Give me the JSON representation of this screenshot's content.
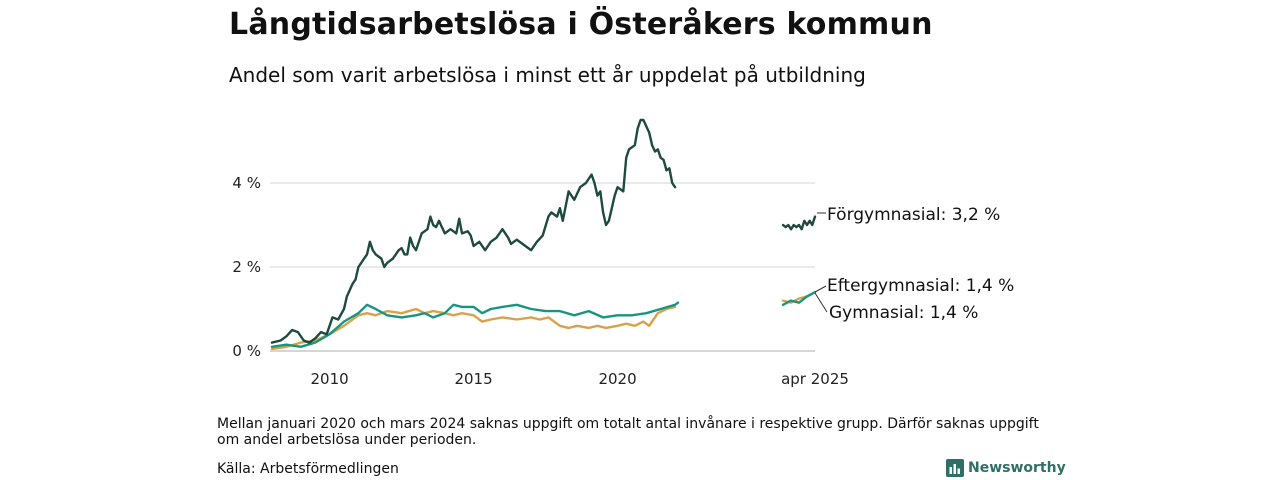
{
  "title": "Långtidsarbetslösa i Österåkers kommun",
  "subtitle": "Andel som varit arbetslösa i minst ett år uppdelat på utbildning",
  "note": "Mellan januari 2020 och mars 2024 saknas uppgift om totalt antal invånare i respektive grupp. Därför saknas uppgift om andel arbetslösa under perioden.",
  "source": "Källa: Arbetsförmedlingen",
  "brand": {
    "name": "Newsworthy",
    "icon": "bar-chart-icon",
    "color": "#2f6f66"
  },
  "chart_data": {
    "type": "line",
    "title": "Långtidsarbetslösa i Österåkers kommun",
    "subtitle": "Andel som varit arbetslösa i minst ett år uppdelat på utbildning",
    "xlabel": "",
    "ylabel": "",
    "ylim": [
      0,
      5.8
    ],
    "y_ticks": [
      {
        "value": 0,
        "label": "0 %"
      },
      {
        "value": 2,
        "label": "2 %"
      },
      {
        "value": 4,
        "label": "4 %"
      }
    ],
    "x_ticks": [
      {
        "value": 2010,
        "label": "2010"
      },
      {
        "value": 2015,
        "label": "2015"
      },
      {
        "value": 2020,
        "label": "2020"
      }
    ],
    "gap_label": "apr 2025",
    "grid": true,
    "legend": "direct labels at line ends (right)",
    "series": [
      {
        "name": "Förgymnasial",
        "end_label": "Förgymnasial: 3,2 %",
        "color": "#1f4a40",
        "segments": [
          [
            [
              2008.0,
              0.2
            ],
            [
              2008.3,
              0.25
            ],
            [
              2008.5,
              0.35
            ],
            [
              2008.7,
              0.5
            ],
            [
              2008.9,
              0.45
            ],
            [
              2009.1,
              0.25
            ],
            [
              2009.3,
              0.2
            ],
            [
              2009.5,
              0.3
            ],
            [
              2009.7,
              0.45
            ],
            [
              2009.9,
              0.4
            ],
            [
              2010.0,
              0.6
            ],
            [
              2010.1,
              0.8
            ],
            [
              2010.3,
              0.75
            ],
            [
              2010.5,
              1.0
            ],
            [
              2010.6,
              1.3
            ],
            [
              2010.8,
              1.6
            ],
            [
              2010.9,
              1.7
            ],
            [
              2011.0,
              2.0
            ],
            [
              2011.1,
              2.1
            ],
            [
              2011.2,
              2.2
            ],
            [
              2011.3,
              2.3
            ],
            [
              2011.4,
              2.6
            ],
            [
              2011.5,
              2.4
            ],
            [
              2011.6,
              2.3
            ],
            [
              2011.7,
              2.25
            ],
            [
              2011.8,
              2.2
            ],
            [
              2011.9,
              2.0
            ],
            [
              2012.0,
              2.1
            ],
            [
              2012.2,
              2.2
            ],
            [
              2012.4,
              2.4
            ],
            [
              2012.5,
              2.45
            ],
            [
              2012.6,
              2.3
            ],
            [
              2012.7,
              2.3
            ],
            [
              2012.8,
              2.7
            ],
            [
              2012.9,
              2.5
            ],
            [
              2013.0,
              2.4
            ],
            [
              2013.2,
              2.8
            ],
            [
              2013.4,
              2.9
            ],
            [
              2013.5,
              3.2
            ],
            [
              2013.6,
              3.0
            ],
            [
              2013.7,
              2.95
            ],
            [
              2013.8,
              3.1
            ],
            [
              2013.9,
              2.95
            ],
            [
              2014.0,
              2.8
            ],
            [
              2014.2,
              2.9
            ],
            [
              2014.4,
              2.8
            ],
            [
              2014.5,
              3.15
            ],
            [
              2014.6,
              2.8
            ],
            [
              2014.8,
              2.85
            ],
            [
              2014.9,
              2.75
            ],
            [
              2015.0,
              2.5
            ],
            [
              2015.2,
              2.6
            ],
            [
              2015.4,
              2.4
            ],
            [
              2015.6,
              2.6
            ],
            [
              2015.8,
              2.7
            ],
            [
              2016.0,
              2.9
            ],
            [
              2016.2,
              2.7
            ],
            [
              2016.3,
              2.55
            ],
            [
              2016.5,
              2.65
            ],
            [
              2016.7,
              2.55
            ],
            [
              2016.9,
              2.45
            ],
            [
              2017.0,
              2.4
            ],
            [
              2017.2,
              2.6
            ],
            [
              2017.4,
              2.75
            ],
            [
              2017.6,
              3.2
            ],
            [
              2017.7,
              3.3
            ],
            [
              2017.9,
              3.2
            ],
            [
              2018.0,
              3.4
            ],
            [
              2018.1,
              3.1
            ],
            [
              2018.3,
              3.8
            ],
            [
              2018.5,
              3.6
            ],
            [
              2018.7,
              3.9
            ],
            [
              2018.9,
              4.0
            ],
            [
              2019.1,
              4.2
            ],
            [
              2019.2,
              4.0
            ],
            [
              2019.3,
              3.7
            ],
            [
              2019.4,
              3.8
            ],
            [
              2019.5,
              3.3
            ],
            [
              2019.6,
              3.0
            ],
            [
              2019.7,
              3.1
            ],
            [
              2019.8,
              3.4
            ],
            [
              2019.9,
              3.7
            ],
            [
              2020.0,
              3.9
            ],
            [
              2020.2,
              3.8
            ],
            [
              2020.3,
              4.6
            ],
            [
              2020.4,
              4.8
            ],
            [
              2020.6,
              4.9
            ],
            [
              2020.7,
              5.3
            ],
            [
              2020.8,
              5.5
            ],
            [
              2020.9,
              5.5
            ],
            [
              2021.0,
              5.35
            ],
            [
              2021.1,
              5.2
            ],
            [
              2021.2,
              4.9
            ],
            [
              2021.3,
              4.75
            ],
            [
              2021.4,
              4.8
            ],
            [
              2021.5,
              4.6
            ],
            [
              2021.6,
              4.55
            ],
            [
              2021.7,
              4.3
            ],
            [
              2021.8,
              4.35
            ],
            [
              2021.9,
              4.0
            ],
            [
              2022.0,
              3.9
            ]
          ],
          [
            [
              2023.9,
              3.0
            ],
            [
              2024.0,
              2.95
            ],
            [
              2024.1,
              3.0
            ],
            [
              2024.2,
              2.9
            ],
            [
              2024.3,
              3.0
            ],
            [
              2024.4,
              2.95
            ],
            [
              2024.5,
              3.0
            ],
            [
              2024.6,
              2.9
            ],
            [
              2024.7,
              3.1
            ],
            [
              2024.8,
              3.0
            ],
            [
              2024.9,
              3.1
            ],
            [
              2025.0,
              3.0
            ],
            [
              2025.1,
              3.2
            ]
          ]
        ]
      },
      {
        "name": "Eftergymnasial",
        "end_label": "Eftergymnasial: 1,4 %",
        "color": "#d9a24a",
        "segments": [
          [
            [
              2008.0,
              0.05
            ],
            [
              2008.5,
              0.1
            ],
            [
              2009.0,
              0.2
            ],
            [
              2009.5,
              0.25
            ],
            [
              2010.0,
              0.4
            ],
            [
              2010.5,
              0.6
            ],
            [
              2011.0,
              0.85
            ],
            [
              2011.3,
              0.9
            ],
            [
              2011.6,
              0.85
            ],
            [
              2012.0,
              0.95
            ],
            [
              2012.5,
              0.9
            ],
            [
              2013.0,
              1.0
            ],
            [
              2013.3,
              0.9
            ],
            [
              2013.6,
              0.95
            ],
            [
              2014.0,
              0.9
            ],
            [
              2014.3,
              0.85
            ],
            [
              2014.6,
              0.9
            ],
            [
              2015.0,
              0.85
            ],
            [
              2015.3,
              0.7
            ],
            [
              2015.6,
              0.75
            ],
            [
              2016.0,
              0.8
            ],
            [
              2016.5,
              0.75
            ],
            [
              2017.0,
              0.8
            ],
            [
              2017.3,
              0.75
            ],
            [
              2017.6,
              0.8
            ],
            [
              2018.0,
              0.6
            ],
            [
              2018.3,
              0.55
            ],
            [
              2018.6,
              0.6
            ],
            [
              2019.0,
              0.55
            ],
            [
              2019.3,
              0.6
            ],
            [
              2019.6,
              0.55
            ],
            [
              2020.0,
              0.6
            ],
            [
              2020.3,
              0.65
            ],
            [
              2020.6,
              0.6
            ],
            [
              2020.9,
              0.7
            ],
            [
              2021.1,
              0.6
            ],
            [
              2021.4,
              0.9
            ],
            [
              2021.7,
              1.0
            ],
            [
              2022.0,
              1.05
            ]
          ],
          [
            [
              2023.9,
              1.2
            ],
            [
              2024.2,
              1.15
            ],
            [
              2024.5,
              1.25
            ],
            [
              2024.8,
              1.3
            ],
            [
              2025.1,
              1.4
            ]
          ]
        ]
      },
      {
        "name": "Gymnasial",
        "end_label": "Gymnasial: 1,4 %",
        "color": "#1a9482",
        "segments": [
          [
            [
              2008.0,
              0.1
            ],
            [
              2008.5,
              0.15
            ],
            [
              2009.0,
              0.1
            ],
            [
              2009.5,
              0.2
            ],
            [
              2010.0,
              0.4
            ],
            [
              2010.5,
              0.7
            ],
            [
              2011.0,
              0.9
            ],
            [
              2011.3,
              1.1
            ],
            [
              2011.6,
              1.0
            ],
            [
              2012.0,
              0.85
            ],
            [
              2012.5,
              0.8
            ],
            [
              2013.0,
              0.85
            ],
            [
              2013.3,
              0.9
            ],
            [
              2013.6,
              0.8
            ],
            [
              2014.0,
              0.9
            ],
            [
              2014.3,
              1.1
            ],
            [
              2014.6,
              1.05
            ],
            [
              2015.0,
              1.05
            ],
            [
              2015.3,
              0.9
            ],
            [
              2015.6,
              1.0
            ],
            [
              2016.0,
              1.05
            ],
            [
              2016.5,
              1.1
            ],
            [
              2017.0,
              1.0
            ],
            [
              2017.5,
              0.95
            ],
            [
              2018.0,
              0.95
            ],
            [
              2018.5,
              0.85
            ],
            [
              2019.0,
              0.95
            ],
            [
              2019.5,
              0.8
            ],
            [
              2020.0,
              0.85
            ],
            [
              2020.5,
              0.85
            ],
            [
              2021.0,
              0.9
            ],
            [
              2021.5,
              1.0
            ],
            [
              2022.0,
              1.1
            ],
            [
              2022.1,
              1.15
            ]
          ],
          [
            [
              2023.9,
              1.1
            ],
            [
              2024.2,
              1.2
            ],
            [
              2024.5,
              1.15
            ],
            [
              2024.8,
              1.3
            ],
            [
              2025.1,
              1.4
            ]
          ]
        ]
      }
    ]
  }
}
